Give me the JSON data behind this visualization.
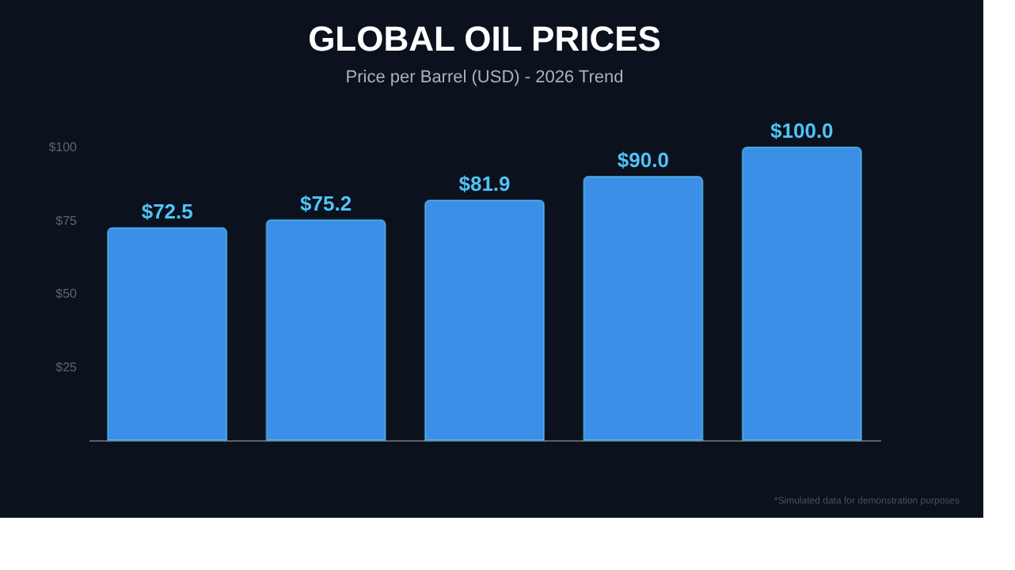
{
  "chart_data": {
    "type": "bar",
    "title": "GLOBAL OIL PRICES",
    "subtitle": "Price per Barrel (USD) - 2026 Trend",
    "categories": [
      null,
      null,
      null,
      null,
      null
    ],
    "values": [
      72.5,
      75.2,
      81.9,
      90.0,
      100.0
    ],
    "value_labels": [
      "$72.5",
      "$75.2",
      "$81.9",
      "$90.0",
      "$100.0"
    ],
    "color": "#3b8fe6",
    "ylim": [
      0,
      100
    ],
    "yticks": [
      {
        "value": 25,
        "label": "$25"
      },
      {
        "value": 50,
        "label": "$50"
      },
      {
        "value": 75,
        "label": "$75"
      },
      {
        "value": 100,
        "label": "$100"
      }
    ],
    "tick_labels": "y",
    "grid": false,
    "annotations": [
      "*Simulated data for demonstration purposes"
    ]
  }
}
